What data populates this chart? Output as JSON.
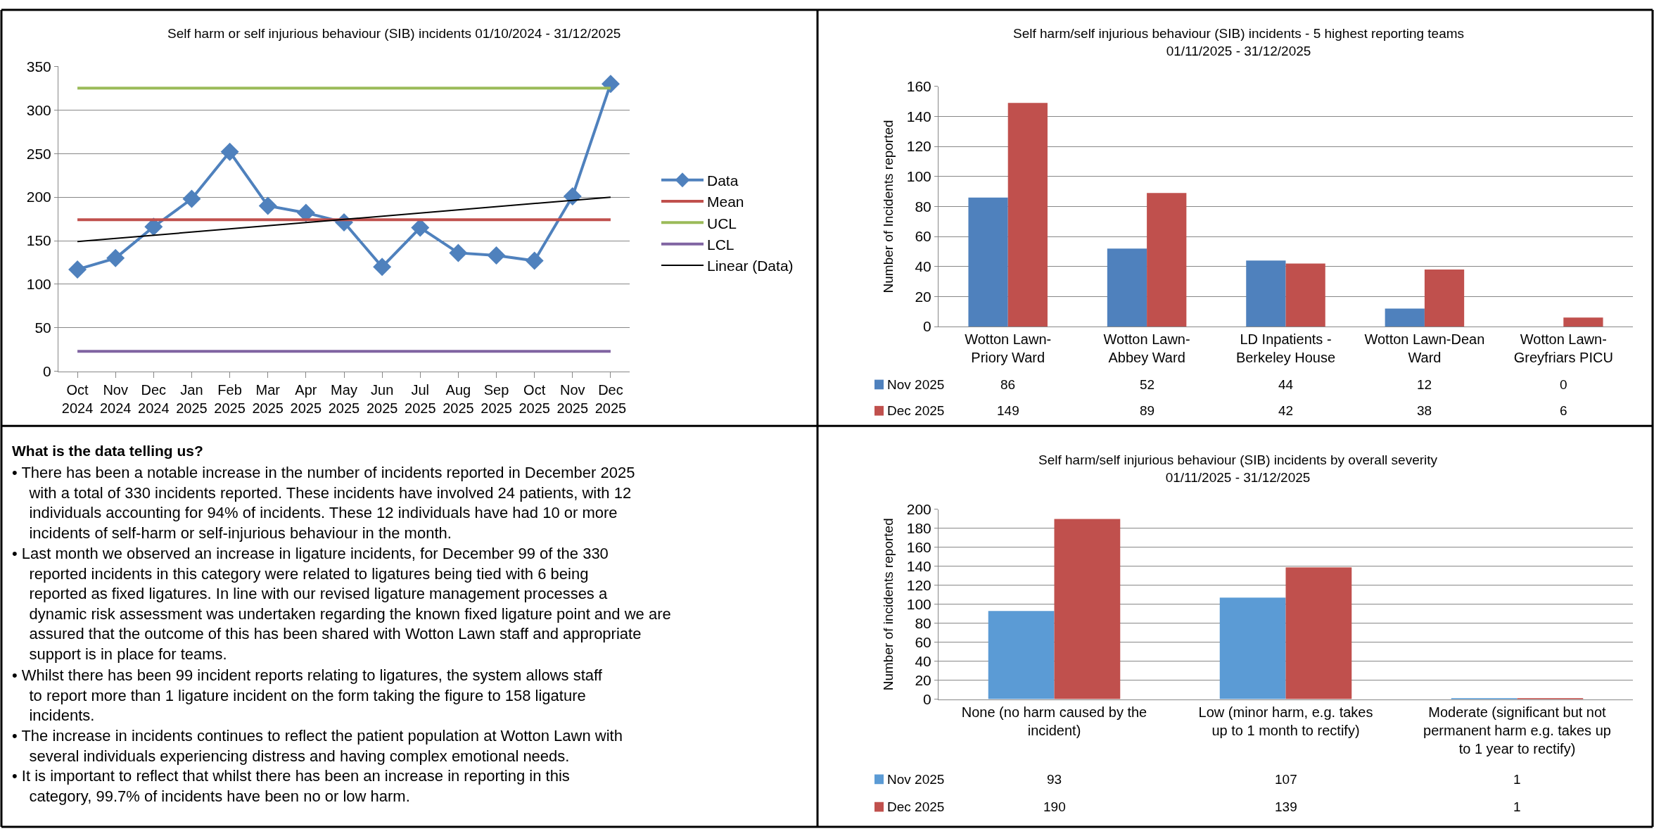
{
  "chart_data": [
    {
      "type": "line",
      "title": "Self harm or self injurious behaviour (SIB) incidents 01/10/2024 - 31/12/2025",
      "categories": [
        "Oct 2024",
        "Nov 2024",
        "Dec 2024",
        "Jan 2025",
        "Feb 2025",
        "Mar 2025",
        "Apr 2025",
        "May 2025",
        "Jun 2025",
        "Jul 2025",
        "Aug 2025",
        "Sep 2025",
        "Oct 2025",
        "Nov 2025",
        "Dec 2025"
      ],
      "series": [
        {
          "name": "Data",
          "color": "#4f81bd",
          "values": [
            117,
            130,
            166,
            198,
            252,
            190,
            182,
            171,
            120,
            165,
            136,
            133,
            127,
            201,
            330
          ],
          "marker": "diamond"
        },
        {
          "name": "Linear (Data)",
          "type": "line",
          "color": "#000000",
          "x": [
            "Oct 2024",
            "Dec 2025"
          ],
          "values": [
            149,
            200
          ],
          "marker": "none"
        }
      ],
      "ref_lines": [
        {
          "axis": "y",
          "value": 174,
          "label": "Mean",
          "color": "#c0504d"
        },
        {
          "axis": "y",
          "value": 325,
          "label": "UCL",
          "color": "#9bbb59"
        },
        {
          "axis": "y",
          "value": 23,
          "label": "LCL",
          "color": "#8064a2"
        }
      ],
      "ylim": [
        0,
        350
      ],
      "yticks": [
        0,
        50,
        100,
        150,
        200,
        250,
        300,
        350
      ],
      "grid": "y",
      "legend": "right",
      "line_style": "solid"
    },
    {
      "type": "bar",
      "title": "Self harm/self injurious behaviour (SIB) incidents - 5 highest reporting teams",
      "subtitle": "01/11/2025 - 31/12/2025",
      "ylabel": "Number of Incidents reported",
      "categories": [
        "Wotton Lawn-Priory Ward",
        "Wotton Lawn-Abbey Ward",
        "LD Inpatients - Berkeley House",
        "Wotton Lawn-Dean Ward",
        "Wotton Lawn-Greyfriars PICU"
      ],
      "series": [
        {
          "name": "Nov 2025",
          "color": "#4f81bd",
          "values": [
            86,
            52,
            44,
            12,
            0
          ]
        },
        {
          "name": "Dec 2025",
          "color": "#c0504d",
          "values": [
            149,
            89,
            42,
            38,
            6
          ]
        }
      ],
      "ylim": [
        0,
        160
      ],
      "yticks": [
        0,
        20,
        40,
        60,
        80,
        100,
        120,
        140,
        160
      ],
      "grid": "y",
      "legend": "bottom",
      "data_labels": true
    },
    {
      "type": "other",
      "title": "What is the data telling us?",
      "annotations": [
        "• There has been a notable increase in the number of incidents reported in December 2025 with a total of 330 incidents reported. These incidents have involved 24 patients, with 12 individuals accounting for 94% of incidents. These 12 individuals have had 10 or more incidents of self-harm or self-injurious behaviour in the month.",
        "• Last month we observed an increase in ligature incidents, for December 99 of the 330 reported incidents in this category were related to ligatures being tied with 6 being reported as fixed ligatures. In line with our revised ligature management processes a dynamic risk assessment was undertaken regarding the known fixed ligature point and we are assured that the outcome of this has been shared with Wotton Lawn staff and appropriate support is in place for teams.",
        "• Whilst there has been 99 incident reports relating to ligatures, the system allows staff to report more than 1 ligature incident on the form taking the figure to 158 ligature incidents.",
        "• The increase in incidents continues to reflect the patient population at Wotton Lawn with several individuals experiencing distress and having complex emotional needs.",
        "• It is important to reflect that whilst there has been an increase in reporting in this category, 99.7% of incidents have been no or low harm."
      ]
    },
    {
      "type": "bar",
      "title": "Self harm/self injurious behaviour (SIB) incidents by overall severity",
      "subtitle": "01/11/2025 - 31/12/2025",
      "ylabel": "Number of incidents reported",
      "categories": [
        "None (no harm caused by the incident)",
        "Low (minor harm, e.g. takes up to 1 month to rectify)",
        "Moderate (significant but not permanent harm e.g. takes up to 1 year to rectify)"
      ],
      "series": [
        {
          "name": "Nov 2025",
          "color": "#5b9bd5",
          "values": [
            93,
            107,
            1
          ]
        },
        {
          "name": "Dec 2025",
          "color": "#c0504d",
          "values": [
            190,
            139,
            1
          ]
        }
      ],
      "ylim": [
        0,
        200
      ],
      "yticks": [
        0,
        20,
        40,
        60,
        80,
        100,
        120,
        140,
        160,
        180,
        200
      ],
      "grid": "y",
      "legend": "bottom",
      "data_labels": true
    }
  ]
}
